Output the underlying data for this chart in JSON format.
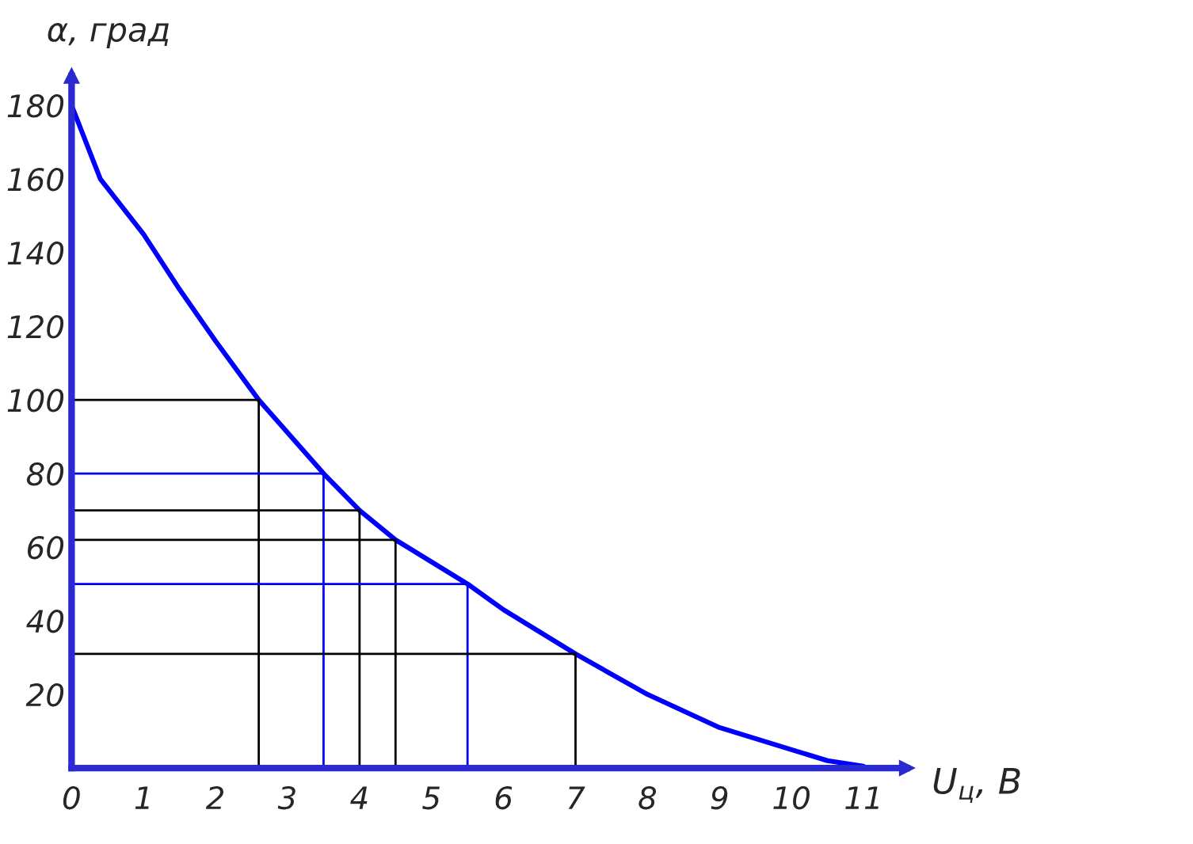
{
  "chart_data": {
    "type": "line",
    "xlabel": "U$_{ц}$, В",
    "ylabel": "α, град",
    "xlim": [
      0,
      11.6
    ],
    "ylim": [
      0,
      188
    ],
    "xticks": [
      0,
      1,
      2,
      3,
      4,
      5,
      6,
      7,
      8,
      9,
      10,
      11
    ],
    "yticks": [
      20,
      40,
      60,
      80,
      100,
      120,
      140,
      160,
      180
    ],
    "grid": false,
    "legend": false,
    "marker": "none",
    "line_style": "solid",
    "series": [
      {
        "color": "#0000ff",
        "x": [
          0,
          0.4,
          1,
          1.5,
          2,
          2.6,
          3.5,
          4,
          4.5,
          5.5,
          6,
          7,
          8,
          9,
          9.5,
          10,
          10.5,
          11
        ],
        "values": [
          180,
          160,
          145,
          130,
          116,
          100,
          80,
          70,
          62,
          50,
          43,
          31,
          20,
          11,
          8,
          5,
          2,
          0.5
        ]
      },
      {
        "color": "#000000",
        "x": [
          0,
          2.6,
          2.6
        ],
        "values": [
          100,
          100,
          0
        ]
      },
      {
        "color": "#0000ff",
        "x": [
          0,
          3.5,
          3.5
        ],
        "values": [
          80,
          80,
          0
        ]
      },
      {
        "color": "#000000",
        "x": [
          0,
          4,
          4
        ],
        "values": [
          70,
          70,
          0
        ]
      },
      {
        "color": "#000000",
        "x": [
          0,
          4.5,
          4.5
        ],
        "values": [
          62,
          62,
          0
        ]
      },
      {
        "color": "#0000ff",
        "x": [
          0,
          5.5,
          5.5
        ],
        "values": [
          50,
          50,
          0
        ]
      },
      {
        "color": "#000000",
        "x": [
          0,
          7,
          7
        ],
        "values": [
          31,
          31,
          0
        ]
      }
    ]
  }
}
